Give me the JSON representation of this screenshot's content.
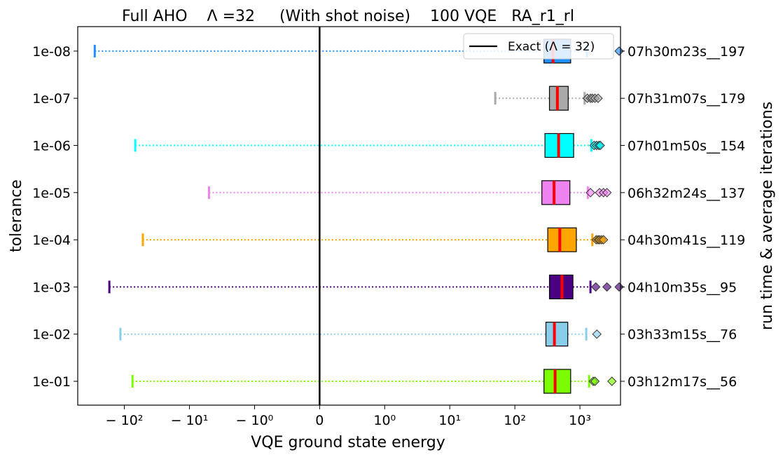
{
  "chart_data": {
    "type": "boxplot",
    "orientation": "horizontal",
    "title": "Full AHO    Λ =32     (With shot noise)    100 VQE   RA_r1_rl",
    "xlabel": "VQE ground state energy",
    "ylabel": "tolerance",
    "ylabel_right": "run time & average iterations",
    "x_scale": "symlog",
    "x_linthresh": 1,
    "xlim": [
      -520,
      4200
    ],
    "x_ticks": [
      {
        "value": -100,
        "label": "− 10²"
      },
      {
        "value": -10,
        "label": "− 10¹"
      },
      {
        "value": -1,
        "label": "− 10⁰"
      },
      {
        "value": 0,
        "label": "0"
      },
      {
        "value": 1,
        "label": "10⁰"
      },
      {
        "value": 10,
        "label": "10¹"
      },
      {
        "value": 100,
        "label": "10²"
      },
      {
        "value": 1000,
        "label": "10³"
      }
    ],
    "exact_value": 0,
    "legend": {
      "label": "Exact (Λ = 32)",
      "placement": "top-right",
      "color": "#000000"
    },
    "median_color": "#ff0000",
    "categories": [
      {
        "tolerance": "1e-01",
        "right_label": "03h12m17s__56",
        "color": "#7cfc00",
        "whisker_low": -75,
        "q1": 280,
        "median": 415,
        "q3": 720,
        "whisker_high": 1380,
        "fliers": [
          1600,
          1700,
          3100
        ]
      },
      {
        "tolerance": "1e-02",
        "right_label": "03h33m15s__76",
        "color": "#87ceeb",
        "whisker_low": -115,
        "q1": 300,
        "median": 405,
        "q3": 650,
        "whisker_high": 1250,
        "fliers": [
          1820
        ]
      },
      {
        "tolerance": "1e-03",
        "right_label": "04h10m35s__95",
        "color": "#4b0082",
        "whisker_low": -170,
        "q1": 340,
        "median": 530,
        "q3": 780,
        "whisker_high": 1450,
        "fliers": [
          1750,
          2600,
          4000
        ]
      },
      {
        "tolerance": "1e-04",
        "right_label": "04h30m41s__119",
        "color": "#ffa500",
        "whisker_low": -52,
        "q1": 320,
        "median": 490,
        "q3": 880,
        "whisker_high": 1550,
        "fliers": [
          1780,
          1900,
          2000,
          2150,
          2300
        ]
      },
      {
        "tolerance": "1e-05",
        "right_label": "06h32m24s__137",
        "color": "#ee82ee",
        "whisker_low": -5,
        "q1": 260,
        "median": 400,
        "q3": 700,
        "whisker_high": 1320,
        "fliers": [
          1450,
          2000,
          2300,
          2600
        ]
      },
      {
        "tolerance": "1e-06",
        "right_label": "07h01m50s__154",
        "color": "#00ffff",
        "whisker_low": -68,
        "q1": 290,
        "median": 470,
        "q3": 800,
        "whisker_high": 1500,
        "fliers": [
          1650,
          1800,
          1950,
          2050
        ]
      },
      {
        "tolerance": "1e-07",
        "right_label": "07h31m07s__179",
        "color": "#a9a9a9",
        "whisker_low": 50,
        "q1": 340,
        "median": 450,
        "q3": 660,
        "whisker_high": 1180,
        "fliers": [
          1300,
          1450,
          1550,
          1700,
          1900
        ]
      },
      {
        "tolerance": "1e-08",
        "right_label": "07h30m23s__197",
        "color": "#1e90ff",
        "whisker_low": -285,
        "q1": 280,
        "median": 385,
        "q3": 720,
        "whisker_high": 1280,
        "fliers": [
          4000
        ]
      }
    ]
  }
}
